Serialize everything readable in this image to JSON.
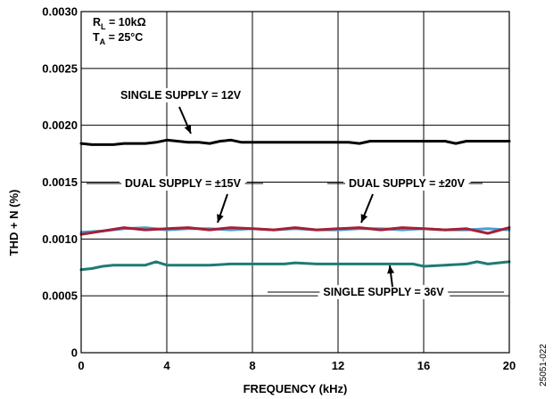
{
  "chart_data": {
    "type": "line",
    "xlabel": "FREQUENCY (kHz)",
    "ylabel": "THD + N (%)",
    "xlim": [
      0,
      20
    ],
    "ylim": [
      0,
      0.003
    ],
    "grid": true,
    "x_ticks": [
      "0",
      "4",
      "8",
      "12",
      "16",
      "20"
    ],
    "y_ticks": [
      "0",
      "0.0005",
      "0.0010",
      "0.0015",
      "0.0020",
      "0.0025",
      "0.0030"
    ],
    "conditions": {
      "rl_prefix": "R",
      "rl_sub": "L",
      "rl_value": " = 10kΩ",
      "ta_prefix": "T",
      "ta_sub": "A",
      "ta_value": " = 25°C"
    },
    "annotations": {
      "single12": "SINGLE SUPPLY = 12V",
      "dual15": "DUAL SUPPLY = ±15V",
      "dual20": "DUAL SUPPLY = ±20V",
      "single36": "SINGLE SUPPLY = 36V"
    },
    "series": [
      {
        "key": "single12",
        "color": "#000000",
        "x": [
          0,
          0.5,
          1,
          1.5,
          2,
          2.5,
          3,
          3.5,
          4,
          4.5,
          5,
          5.5,
          6,
          6.5,
          7,
          7.5,
          8,
          9,
          10,
          11,
          12,
          12.5,
          13,
          13.5,
          14,
          15,
          16,
          17,
          17.5,
          18,
          19,
          20
        ],
        "y": [
          0.00184,
          0.00183,
          0.00183,
          0.00183,
          0.00184,
          0.00184,
          0.00184,
          0.00185,
          0.00187,
          0.00186,
          0.00185,
          0.00185,
          0.00184,
          0.00186,
          0.00187,
          0.00185,
          0.00185,
          0.00185,
          0.00185,
          0.00185,
          0.00185,
          0.00185,
          0.00184,
          0.00186,
          0.00186,
          0.00186,
          0.00186,
          0.00186,
          0.00184,
          0.00186,
          0.00186,
          0.00186
        ]
      },
      {
        "key": "dual15",
        "color": "#4a9fd5",
        "x": [
          0,
          1,
          2,
          3,
          4,
          5,
          6,
          7,
          8,
          9,
          10,
          11,
          12,
          13,
          14,
          15,
          16,
          17,
          18,
          19,
          20
        ],
        "y": [
          0.00106,
          0.00107,
          0.00109,
          0.0011,
          0.00108,
          0.00109,
          0.00109,
          0.00108,
          0.00109,
          0.00108,
          0.00109,
          0.00108,
          0.00108,
          0.00109,
          0.00109,
          0.00108,
          0.00109,
          0.00108,
          0.00108,
          0.00109,
          0.00108
        ]
      },
      {
        "key": "dual20",
        "color": "#a52035",
        "x": [
          0,
          1,
          2,
          3,
          4,
          5,
          6,
          7,
          8,
          9,
          10,
          11,
          12,
          13,
          14,
          15,
          16,
          17,
          18,
          19,
          20
        ],
        "y": [
          0.00104,
          0.00107,
          0.0011,
          0.00108,
          0.00109,
          0.0011,
          0.00108,
          0.0011,
          0.00109,
          0.00108,
          0.0011,
          0.00108,
          0.00109,
          0.0011,
          0.00108,
          0.0011,
          0.00109,
          0.00108,
          0.00109,
          0.00105,
          0.0011
        ]
      },
      {
        "key": "single36",
        "color": "#1e7b73",
        "x": [
          0,
          0.5,
          1,
          1.5,
          2,
          2.5,
          3,
          3.5,
          4,
          4.5,
          5,
          6,
          7,
          8,
          9,
          9.5,
          10,
          11,
          12,
          13,
          14,
          15,
          15.5,
          16,
          17,
          18,
          18.5,
          19,
          20
        ],
        "y": [
          0.00073,
          0.00074,
          0.00076,
          0.00077,
          0.00077,
          0.00077,
          0.00077,
          0.0008,
          0.00077,
          0.00077,
          0.00077,
          0.00077,
          0.00078,
          0.00078,
          0.00078,
          0.00078,
          0.00079,
          0.00078,
          0.00078,
          0.00078,
          0.00078,
          0.00078,
          0.00078,
          0.00076,
          0.00077,
          0.00078,
          0.0008,
          0.00078,
          0.0008
        ]
      }
    ]
  },
  "figure_id": "25051-022"
}
